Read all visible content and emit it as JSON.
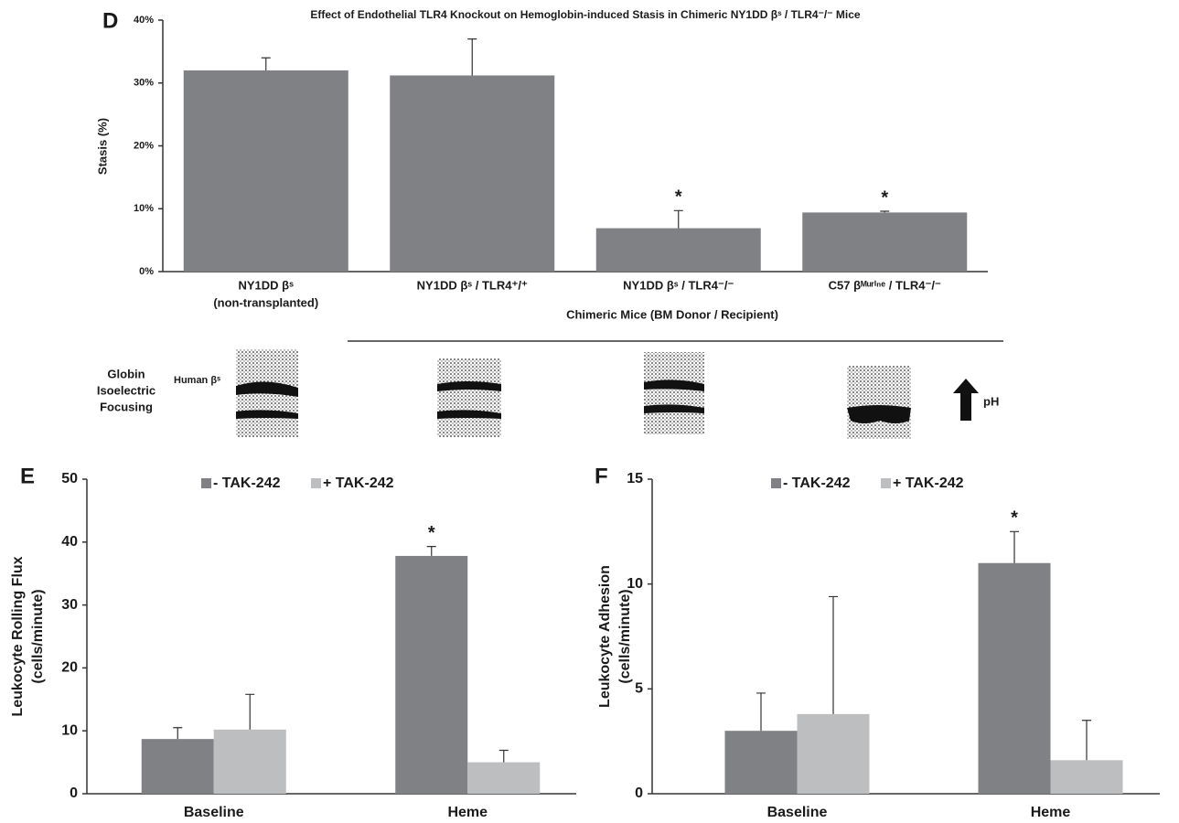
{
  "chart_data": [
    {
      "type": "bar",
      "panel": "D",
      "title": "Effect of  Endothelial TLR4 Knockout on Hemoglobin-induced Stasis in Chimeric NY1DD βˢ / TLR4⁻/⁻ Mice",
      "ylabel": [
        "Stasis (%)"
      ],
      "categories": [
        [
          "NY1DD βˢ",
          "(non-transplanted)"
        ],
        [
          "NY1DD βˢ / TLR4⁺/⁺"
        ],
        [
          "NY1DD βˢ / TLR4⁻/⁻"
        ],
        [
          "C57 βᴹᵘʳⁱⁿᵉ / TLR4⁻/⁻"
        ]
      ],
      "group_label": "Chimeric Mice (BM Donor / Recipient)",
      "values": [
        32,
        31.2,
        6.9,
        9.4
      ],
      "errors": [
        2,
        5.8,
        2.8,
        0.2
      ],
      "significance": [
        null,
        null,
        "*",
        "*"
      ],
      "color": "#808184",
      "ylim": [
        0,
        40
      ],
      "yticks": [
        {
          "value": 0,
          "label": "0%"
        },
        {
          "value": 10,
          "label": "10%"
        },
        {
          "value": 20,
          "label": "20%"
        },
        {
          "value": 30,
          "label": "30%"
        },
        {
          "value": 40,
          "label": "40%"
        }
      ]
    },
    {
      "type": "bar",
      "panel": "E",
      "ylabel": [
        "Leukocyte Rolling Flux",
        "(cells/minute)"
      ],
      "categories": [
        [
          "Baseline"
        ],
        [
          "Heme"
        ]
      ],
      "series": [
        {
          "name": "- TAK-242",
          "color": "#808184",
          "values": [
            8.7,
            37.8
          ],
          "errors": [
            1.8,
            1.5
          ],
          "significance": [
            null,
            "*"
          ]
        },
        {
          "name": "+ TAK-242",
          "color": "#bdbebf",
          "values": [
            10.2,
            5.0
          ],
          "errors": [
            5.6,
            1.9
          ]
        }
      ],
      "legend": "top",
      "ylim": [
        0,
        50
      ],
      "yticks": [
        0,
        10,
        20,
        30,
        40,
        50
      ]
    },
    {
      "type": "bar",
      "panel": "F",
      "ylabel": [
        "Leukocyte Adhesion",
        "(cells/minute)"
      ],
      "categories": [
        [
          "Baseline"
        ],
        [
          "Heme"
        ]
      ],
      "series": [
        {
          "name": "- TAK-242",
          "color": "#808184",
          "values": [
            3.0,
            11.0
          ],
          "errors": [
            1.8,
            1.5
          ],
          "significance": [
            null,
            "*"
          ]
        },
        {
          "name": "+ TAK-242",
          "color": "#bdbebf",
          "values": [
            3.8,
            1.6
          ],
          "errors": [
            5.6,
            1.9
          ]
        }
      ],
      "legend": "top",
      "ylim": [
        0,
        15
      ],
      "yticks": [
        0,
        5,
        10,
        15
      ]
    }
  ],
  "gel_panel": {
    "label": [
      "Globin",
      "Isoelectric",
      "Focusing"
    ],
    "band_label": "Human βˢ",
    "arrow_label": "pH"
  }
}
